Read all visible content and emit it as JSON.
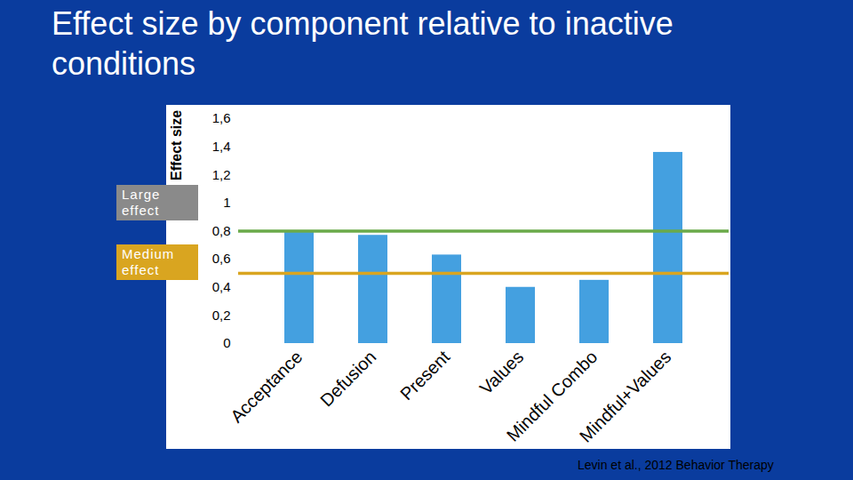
{
  "chart_data": {
    "type": "bar",
    "title": "Effect size by component relative to inactive conditions",
    "y_label": "Effect size",
    "categories": [
      "Acceptance",
      "Defusion",
      "Present",
      "Values",
      "Mindful Combo",
      "Mindful+Values"
    ],
    "values": [
      0.79,
      0.77,
      0.63,
      0.4,
      0.45,
      1.36
    ],
    "color": "#44a0e0",
    "ylim": [
      0,
      1.6
    ],
    "yticks": [
      {
        "value": 0,
        "label": "0"
      },
      {
        "value": 0.2,
        "label": "0,2"
      },
      {
        "value": 0.4,
        "label": "0,4"
      },
      {
        "value": 0.6,
        "label": "0,6"
      },
      {
        "value": 0.8,
        "label": "0,8"
      },
      {
        "value": 1,
        "label": "1"
      },
      {
        "value": 1.2,
        "label": "1,2"
      },
      {
        "value": 1.4,
        "label": "1,4"
      },
      {
        "value": 1.6,
        "label": "1,6"
      }
    ],
    "grid": false,
    "reference_lines": [
      {
        "label": "Large effect",
        "value": 0.8,
        "color": "#6aaa4a"
      },
      {
        "label": "Medium effect",
        "value": 0.5,
        "color": "#d9a520"
      }
    ],
    "caption": "Levin et al., 2012 Behavior Therapy"
  }
}
